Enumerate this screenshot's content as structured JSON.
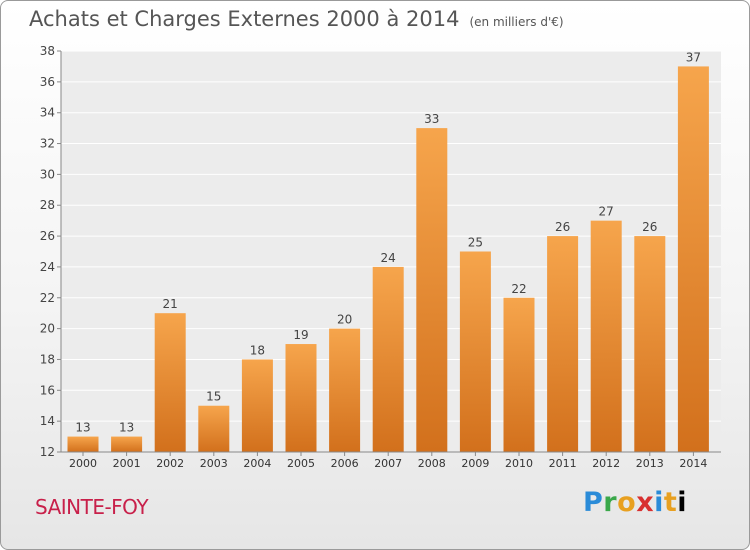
{
  "header": {
    "title": "Achats et Charges Externes 2000 à 2014",
    "subtitle": "(en milliers d'€)"
  },
  "footer": {
    "commune": "SAINTE-FOY",
    "brand": "Proxiti",
    "brand_letters": [
      "P",
      "r",
      "o",
      "x",
      "i",
      "t",
      "i"
    ]
  },
  "colors": {
    "bar_light": "#f6a54c",
    "bar_dark": "#d2701c",
    "commune": "#c8204a"
  },
  "chart_data": {
    "type": "bar",
    "categories": [
      "2000",
      "2001",
      "2002",
      "2003",
      "2004",
      "2005",
      "2006",
      "2007",
      "2008",
      "2009",
      "2010",
      "2011",
      "2012",
      "2013",
      "2014"
    ],
    "values": [
      13,
      13,
      21,
      15,
      18,
      19,
      20,
      24,
      33,
      25,
      22,
      26,
      27,
      26,
      37
    ],
    "title": "Achats et Charges Externes 2000 à 2014",
    "subtitle": "(en milliers d'€)",
    "ylim": [
      12,
      38
    ],
    "yticks": [
      12,
      14,
      16,
      18,
      20,
      22,
      24,
      26,
      28,
      30,
      32,
      34,
      36,
      38
    ],
    "grid": true,
    "data_labels": true
  }
}
